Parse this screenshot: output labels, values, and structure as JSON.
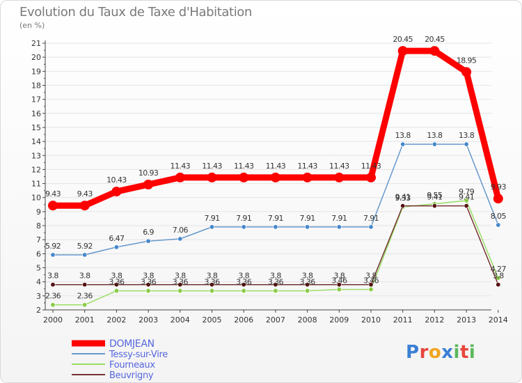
{
  "header": {
    "title": "Evolution du Taux de Taxe d'Habitation",
    "unit": "(en %)"
  },
  "brand": {
    "logo_text": "Proxiti",
    "logo_colors": [
      "#3a7fd5",
      "#e8453c",
      "#f2a51f",
      "#3a7fd5",
      "#5cb85c",
      "#e8453c",
      "#5cb85c"
    ]
  },
  "chart_data": {
    "type": "line",
    "title": "Evolution du Taux de Taxe d'Habitation",
    "ylabel": "(en %)",
    "xlabel": "",
    "x": [
      "2000",
      "2001",
      "2002",
      "2003",
      "2004",
      "2005",
      "2006",
      "2007",
      "2008",
      "2009",
      "2010",
      "2011",
      "2012",
      "2013",
      "2014"
    ],
    "ylim": [
      2,
      21
    ],
    "yticks": [
      2,
      3,
      4,
      5,
      6,
      7,
      8,
      9,
      10,
      11,
      12,
      13,
      14,
      15,
      16,
      17,
      18,
      19,
      20,
      21
    ],
    "grid": "horizontal",
    "legend_position": "bottom-left",
    "series": [
      {
        "name": "DOMJEAN",
        "color": "#ff0000",
        "values": [
          9.43,
          9.43,
          10.43,
          10.93,
          11.43,
          11.43,
          11.43,
          11.43,
          11.43,
          11.43,
          11.43,
          20.45,
          20.45,
          18.95,
          9.93
        ],
        "labels": [
          "9.43",
          "9.43",
          "10.43",
          "10.93",
          "11.43",
          "11.43",
          "11.43",
          "11.43",
          "11.43",
          "11.43",
          "11.43",
          "20.45",
          "20.45",
          "18.95",
          "9.93"
        ]
      },
      {
        "name": "Tessy-sur-Vire",
        "color": "#6699cc",
        "values": [
          5.92,
          5.92,
          6.47,
          6.9,
          7.06,
          7.91,
          7.91,
          7.91,
          7.91,
          7.91,
          7.91,
          13.8,
          13.8,
          13.8,
          8.05
        ],
        "labels": [
          "5.92",
          "5.92",
          "6.47",
          "6.9",
          "7.06",
          "7.91",
          "7.91",
          "7.91",
          "7.91",
          "7.91",
          "7.91",
          "13.8",
          "13.8",
          "13.8",
          "8.05"
        ]
      },
      {
        "name": "Fourneaux",
        "color": "#99dd66",
        "values": [
          2.36,
          2.36,
          3.36,
          3.36,
          3.36,
          3.36,
          3.36,
          3.36,
          3.36,
          3.46,
          3.46,
          9.33,
          9.55,
          9.79,
          4.27
        ],
        "labels": [
          "2.36",
          "2.36",
          "3.36",
          "3.36",
          "3.36",
          "3.36",
          "3.36",
          "3.36",
          "3.36",
          "3.46",
          "3.46",
          "9.33",
          "9.55",
          "9.79",
          "4.27"
        ]
      },
      {
        "name": "Beuvrigny",
        "color": "#773333",
        "values": [
          3.8,
          3.8,
          3.8,
          3.8,
          3.8,
          3.8,
          3.8,
          3.8,
          3.8,
          3.8,
          3.8,
          9.41,
          9.41,
          9.41,
          3.8
        ],
        "labels": [
          "3.8",
          "3.8",
          "3.8",
          "3.8",
          "3.8",
          "3.8",
          "3.8",
          "3.8",
          "3.8",
          "3.8",
          "3.8",
          "9.41",
          "9.41",
          "9.41",
          "3.8"
        ]
      }
    ]
  }
}
